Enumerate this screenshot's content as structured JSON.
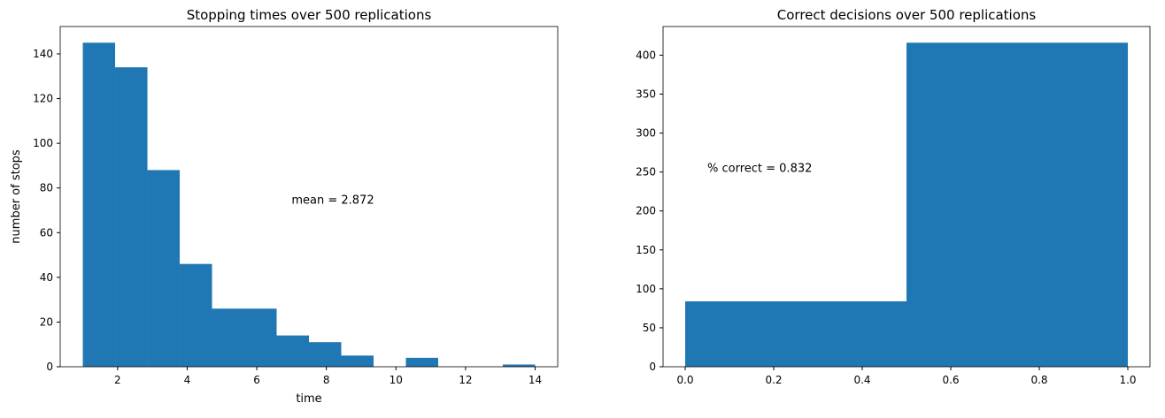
{
  "chart_data": [
    {
      "type": "histogram",
      "title": "Stopping times over 500 replications",
      "xlabel": "time",
      "ylabel": "number of stops",
      "bins": [
        1,
        1.9286,
        2.8571,
        3.7857,
        4.7143,
        5.6429,
        6.5714,
        7.5,
        8.4286,
        9.3571,
        10.2857,
        11.2143,
        12.1429,
        13.0714,
        14
      ],
      "values": [
        145,
        134,
        88,
        46,
        26,
        26,
        14,
        11,
        5,
        0,
        4,
        0,
        0,
        1
      ],
      "color": "#1f77b4",
      "xlim": [
        0.35,
        14.65
      ],
      "ylim": [
        0,
        152.25
      ],
      "xticks": [
        2,
        4,
        6,
        8,
        10,
        12,
        14
      ],
      "yticks": [
        0,
        20,
        40,
        60,
        80,
        100,
        120,
        140
      ],
      "annotation": {
        "text": "mean = 2.872",
        "x": 7,
        "y": 73
      }
    },
    {
      "type": "histogram",
      "title": "Correct decisions over 500 replications",
      "bins": [
        0,
        0.5,
        1
      ],
      "values": [
        84,
        416
      ],
      "color": "#1f77b4",
      "xlim": [
        -0.05,
        1.05
      ],
      "ylim": [
        0,
        436.8
      ],
      "xticks": [
        {
          "value": 0,
          "label": "0.0"
        },
        {
          "value": 0.2,
          "label": "0.2"
        },
        {
          "value": 0.4,
          "label": "0.4"
        },
        {
          "value": 0.6,
          "label": "0.6"
        },
        {
          "value": 0.8,
          "label": "0.8"
        },
        {
          "value": 1,
          "label": "1.0"
        }
      ],
      "yticks": [
        0,
        50,
        100,
        150,
        200,
        250,
        300,
        350,
        400
      ],
      "annotation": {
        "text": "% correct = 0.832",
        "x": 0.05,
        "y": 250
      }
    }
  ]
}
